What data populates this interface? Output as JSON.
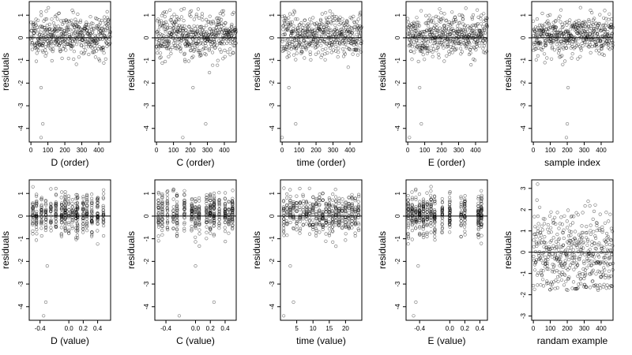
{
  "chart_data": [
    {
      "type": "scatter",
      "xlabel": "D (order)",
      "ylabel": "residuals",
      "xticks": [
        0,
        100,
        200,
        300,
        400
      ],
      "yticks": [
        -4,
        -3,
        -2,
        -1,
        0,
        1
      ],
      "xlim": [
        -10,
        470
      ],
      "ylim": [
        -4.6,
        1.6
      ],
      "n": 470,
      "pattern": "order",
      "seed": 11,
      "hline": 0,
      "outliers": [
        [
          60,
          -4.4
        ],
        [
          70,
          -3.8
        ],
        [
          60,
          -2.2
        ]
      ]
    },
    {
      "type": "scatter",
      "xlabel": "C (order)",
      "ylabel": "residuals",
      "xticks": [
        0,
        100,
        200,
        300,
        400
      ],
      "yticks": [
        -4,
        -3,
        -2,
        -1,
        0,
        1
      ],
      "xlim": [
        -10,
        470
      ],
      "ylim": [
        -4.6,
        1.6
      ],
      "n": 470,
      "pattern": "order",
      "seed": 23,
      "hline": 0,
      "outliers": [
        [
          155,
          -4.4
        ],
        [
          290,
          -3.8
        ],
        [
          215,
          -2.2
        ]
      ]
    },
    {
      "type": "scatter",
      "xlabel": "time (order)",
      "ylabel": "residuals",
      "xticks": [
        0,
        100,
        200,
        300,
        400
      ],
      "yticks": [
        -4,
        -3,
        -2,
        -1,
        0,
        1
      ],
      "xlim": [
        -10,
        470
      ],
      "ylim": [
        -4.6,
        1.6
      ],
      "n": 470,
      "pattern": "order",
      "seed": 37,
      "hline": 0,
      "outliers": [
        [
          0,
          -4.4
        ],
        [
          80,
          -3.8
        ],
        [
          40,
          -2.2
        ]
      ]
    },
    {
      "type": "scatter",
      "xlabel": "E (order)",
      "ylabel": "residuals",
      "xticks": [
        0,
        100,
        200,
        300,
        400
      ],
      "yticks": [
        -4,
        -3,
        -2,
        -1,
        0,
        1
      ],
      "xlim": [
        -10,
        470
      ],
      "ylim": [
        -4.6,
        1.6
      ],
      "n": 470,
      "pattern": "order",
      "seed": 41,
      "hline": 0,
      "outliers": [
        [
          10,
          -4.4
        ],
        [
          80,
          -3.8
        ],
        [
          70,
          -2.2
        ]
      ]
    },
    {
      "type": "scatter",
      "xlabel": "sample index",
      "ylabel": "residuals",
      "xticks": [
        0,
        100,
        200,
        300,
        400
      ],
      "yticks": [
        -4,
        -3,
        -2,
        -1,
        0,
        1
      ],
      "xlim": [
        -10,
        470
      ],
      "ylim": [
        -4.6,
        1.6
      ],
      "n": 470,
      "pattern": "order",
      "seed": 53,
      "hline": 0,
      "outliers": [
        [
          195,
          -4.4
        ],
        [
          200,
          -3.8
        ],
        [
          205,
          -2.2
        ]
      ]
    },
    {
      "type": "scatter",
      "xlabel": "D (value)",
      "ylabel": "residuals",
      "xticks": [
        -0.4,
        0,
        0.2,
        0.4
      ],
      "xtick_labels": [
        "-0.4",
        "0.0",
        "0.2",
        "0.4"
      ],
      "yticks": [
        -4,
        -3,
        -2,
        -1,
        0,
        1
      ],
      "xlim": [
        -0.55,
        0.58
      ],
      "ylim": [
        -4.6,
        1.6
      ],
      "n": 470,
      "pattern": "clusters",
      "clusters": [
        -0.5,
        -0.45,
        -0.38,
        -0.32,
        -0.25,
        -0.18,
        -0.1,
        -0.05,
        0.0,
        0.05,
        0.1,
        0.12,
        0.2,
        0.25,
        0.32,
        0.4,
        0.48
      ],
      "seed": 61,
      "hline": 0,
      "outliers": [
        [
          -0.35,
          -4.4
        ],
        [
          -0.32,
          -3.8
        ],
        [
          -0.3,
          -2.2
        ]
      ]
    },
    {
      "type": "scatter",
      "xlabel": "C (value)",
      "ylabel": "residuals",
      "xticks": [
        -0.4,
        0,
        0.2,
        0.4
      ],
      "xtick_labels": [
        "-0.4",
        "0.0",
        "0.2",
        "0.4"
      ],
      "yticks": [
        -4,
        -3,
        -2,
        -1,
        0,
        1
      ],
      "xlim": [
        -0.55,
        0.55
      ],
      "ylim": [
        -4.6,
        1.6
      ],
      "n": 470,
      "pattern": "clusters",
      "clusters": [
        -0.5,
        -0.45,
        -0.38,
        -0.3,
        -0.25,
        -0.15,
        -0.05,
        0.0,
        0.05,
        0.15,
        0.2,
        0.25,
        0.32,
        0.4,
        0.45,
        0.5
      ],
      "seed": 71,
      "hline": 0,
      "outliers": [
        [
          -0.22,
          -4.4
        ],
        [
          0.25,
          -3.8
        ],
        [
          0.0,
          -2.2
        ]
      ]
    },
    {
      "type": "scatter",
      "xlabel": "time (value)",
      "ylabel": "residuals",
      "xticks": [
        5,
        10,
        15,
        20
      ],
      "yticks": [
        -4,
        -3,
        -2,
        -1,
        0,
        1
      ],
      "xlim": [
        0,
        25
      ],
      "ylim": [
        -4.6,
        1.6
      ],
      "n": 470,
      "pattern": "clusters",
      "clusters": [
        1,
        2,
        3,
        4,
        5,
        6,
        7,
        8,
        9,
        10,
        11,
        12,
        13,
        14,
        15,
        16,
        17,
        18,
        19,
        20,
        21,
        22,
        23,
        24
      ],
      "seed": 83,
      "hline": 0,
      "outliers": [
        [
          1,
          -4.4
        ],
        [
          4,
          -3.8
        ],
        [
          3,
          -2.2
        ]
      ]
    },
    {
      "type": "scatter",
      "xlabel": "E (value)",
      "ylabel": "residuals",
      "xticks": [
        -0.4,
        0,
        0.2,
        0.4
      ],
      "xtick_labels": [
        "-0.4",
        "0.0",
        "0.2",
        "0.4"
      ],
      "yticks": [
        -4,
        -3,
        -2,
        -1,
        0,
        1
      ],
      "xlim": [
        -0.58,
        0.5
      ],
      "ylim": [
        -4.6,
        1.6
      ],
      "n": 470,
      "pattern": "clusters",
      "clusters": [
        -0.55,
        -0.5,
        -0.45,
        -0.4,
        -0.35,
        -0.3,
        -0.25,
        -0.2,
        -0.1,
        0.0,
        0.15,
        0.2,
        0.38,
        0.42
      ],
      "seed": 97,
      "hline": 0,
      "outliers": [
        [
          -0.48,
          -4.4
        ],
        [
          -0.45,
          -3.8
        ],
        [
          -0.42,
          -2.2
        ]
      ]
    },
    {
      "type": "scatter",
      "xlabel": "randam example",
      "ylabel": "residuals",
      "xticks": [
        0,
        100,
        200,
        300,
        400
      ],
      "yticks": [
        -3,
        -2,
        -1,
        0,
        1,
        2,
        3
      ],
      "xlim": [
        -10,
        470
      ],
      "ylim": [
        -3.2,
        3.4
      ],
      "n": 470,
      "pattern": "random",
      "seed": 101,
      "hline": 0,
      "outliers": []
    }
  ]
}
